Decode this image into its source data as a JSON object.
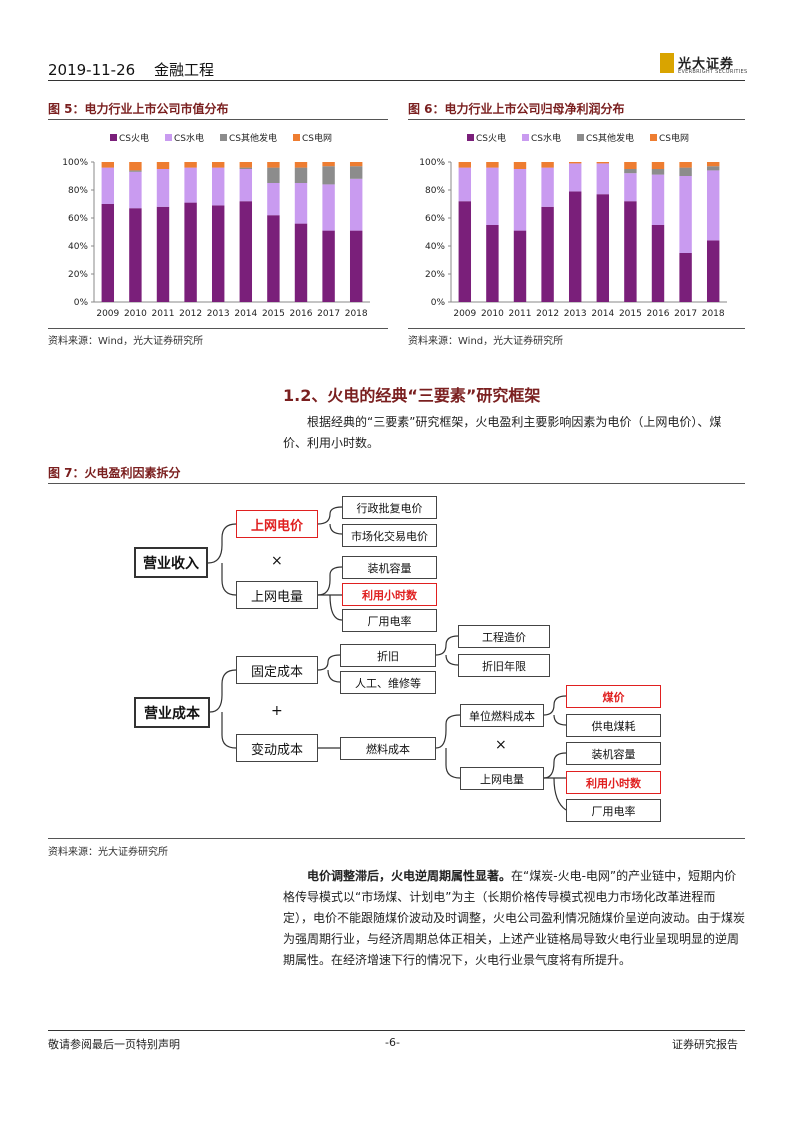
{
  "header": {
    "date": "2019-11-26",
    "category": "金融工程",
    "logo_cn": "光大证券",
    "logo_en": "EVERBRIGHT SECURITIES"
  },
  "figures": {
    "fig5": {
      "title": "图 5：电力行业上市公司市值分布",
      "source": "资料来源：Wind，光大证券研究所"
    },
    "fig6": {
      "title": "图 6：电力行业上市公司归母净利润分布",
      "source": "资料来源：Wind，光大证券研究所"
    },
    "fig7": {
      "title": "图 7：火电盈利因素拆分",
      "source": "资料来源：光大证券研究所"
    }
  },
  "chart_data": [
    {
      "type": "bar",
      "stacked": true,
      "categories": [
        "2009",
        "2010",
        "2011",
        "2012",
        "2013",
        "2014",
        "2015",
        "2016",
        "2017",
        "2018"
      ],
      "y_ticks": [
        "0%",
        "20%",
        "40%",
        "60%",
        "80%",
        "100%"
      ],
      "ylim": [
        0,
        100
      ],
      "legend_position": "top",
      "series": [
        {
          "name": "CS火电",
          "color": "#7a1f7a",
          "values": [
            70,
            67,
            68,
            71,
            69,
            72,
            62,
            56,
            51,
            51
          ]
        },
        {
          "name": "CS水电",
          "color": "#c99bf0",
          "values": [
            26,
            26,
            27,
            25,
            27,
            23,
            23,
            29,
            33,
            37
          ]
        },
        {
          "name": "CS其他发电",
          "color": "#8c8c8c",
          "values": [
            0,
            1,
            0,
            0,
            0,
            1,
            11,
            11,
            13,
            9
          ]
        },
        {
          "name": "CS电网",
          "color": "#ee7d31",
          "values": [
            4,
            6,
            5,
            4,
            4,
            4,
            4,
            4,
            3,
            3
          ]
        }
      ]
    },
    {
      "type": "bar",
      "stacked": true,
      "categories": [
        "2009",
        "2010",
        "2011",
        "2012",
        "2013",
        "2014",
        "2015",
        "2016",
        "2017",
        "2018"
      ],
      "y_ticks": [
        "0%",
        "20%",
        "40%",
        "60%",
        "80%",
        "100%"
      ],
      "ylim": [
        0,
        100
      ],
      "legend_position": "top",
      "series": [
        {
          "name": "CS火电",
          "color": "#7a1f7a",
          "values": [
            72,
            55,
            51,
            68,
            79,
            77,
            72,
            55,
            35,
            44
          ]
        },
        {
          "name": "CS水电",
          "color": "#c99bf0",
          "values": [
            24,
            41,
            44,
            28,
            20,
            22,
            20,
            36,
            55,
            50
          ]
        },
        {
          "name": "CS其他发电",
          "color": "#8c8c8c",
          "values": [
            0,
            0,
            0,
            0,
            0,
            0,
            3,
            4,
            6,
            3
          ]
        },
        {
          "name": "CS电网",
          "color": "#ee7d31",
          "values": [
            4,
            4,
            5,
            4,
            1,
            1,
            5,
            5,
            4,
            3
          ]
        }
      ]
    }
  ],
  "section": {
    "title": "1.2、火电的经典“三要素”研究框架",
    "para": "根据经典的“三要素”研究框架，火电盈利主要影响因素为电价（上网电价）、煤价、利用小时数。"
  },
  "diagram": {
    "revenue": "营业收入",
    "cost": "营业成本",
    "times": "×",
    "plus": "+",
    "grid_price": "上网电价",
    "admin_price": "行政批复电价",
    "market_price": "市场化交易电价",
    "grid_volume": "上网电量",
    "capacity": "装机容量",
    "hours": "利用小时数",
    "self_use": "厂用电率",
    "fixed_cost": "固定成本",
    "depreciation": "折旧",
    "construction": "工程造价",
    "dep_years": "折旧年限",
    "labor": "人工、维修等",
    "variable_cost": "变动成本",
    "fuel_cost": "燃料成本",
    "unit_fuel": "单位燃料成本",
    "coal_price": "煤价",
    "coal_consumption": "供电煤耗",
    "grid_volume2": "上网电量",
    "capacity2": "装机容量",
    "hours2": "利用小时数",
    "self_use2": "厂用电率"
  },
  "body": {
    "bold_lead": "电价调整滞后，火电逆周期属性显著。",
    "text": "在“煤炭-火电-电网”的产业链中，短期内价格传导模式以“市场煤、计划电”为主（长期价格传导模式视电力市场化改革进程而定），电价不能跟随煤价波动及时调整，火电公司盈利情况随煤价呈逆向波动。由于煤炭为强周期行业，与经济周期总体正相关，上述产业链格局导致火电行业呈现明显的逆周期属性。在经济增速下行的情况下，火电行业景气度将有所提升。"
  },
  "footer": {
    "left": "敬请参阅最后一页特别声明",
    "center": "-6-",
    "right": "证券研究报告"
  }
}
